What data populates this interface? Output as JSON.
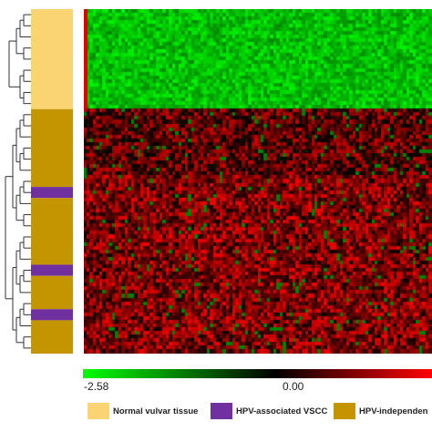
{
  "chart_data": {
    "type": "heatmap",
    "title": "",
    "color_scale": {
      "min": -2.58,
      "mid": 0.0,
      "ticks": [
        "-2.58",
        "0.00"
      ],
      "colors": {
        "low": "#00ff00",
        "mid": "#000000",
        "high": "#ff0000"
      }
    },
    "sample_groups": [
      {
        "name": "Normal vulvar tissue",
        "color": "#fad373",
        "rows": 9
      },
      {
        "name": "HPV-independent",
        "color": "#c59500",
        "rows": 7
      },
      {
        "name": "HPV-associated VSCC",
        "color": "#7030a0",
        "rows": 1
      },
      {
        "name": "HPV-independent",
        "color": "#c59500",
        "rows": 6
      },
      {
        "name": "HPV-associated VSCC",
        "color": "#7030a0",
        "rows": 1
      },
      {
        "name": "HPV-independent",
        "color": "#c59500",
        "rows": 3
      },
      {
        "name": "HPV-associated VSCC",
        "color": "#7030a0",
        "rows": 1
      },
      {
        "name": "HPV-independent",
        "color": "#c59500",
        "rows": 3
      }
    ],
    "legend": [
      {
        "label": "Normal vulvar tissue",
        "color": "#fad373"
      },
      {
        "label": "HPV-associated VSCC",
        "color": "#7030a0"
      },
      {
        "label": "HPV-independen",
        "color": "#c59500"
      }
    ],
    "legend_position": "bottom",
    "row_dendrogram": true
  }
}
